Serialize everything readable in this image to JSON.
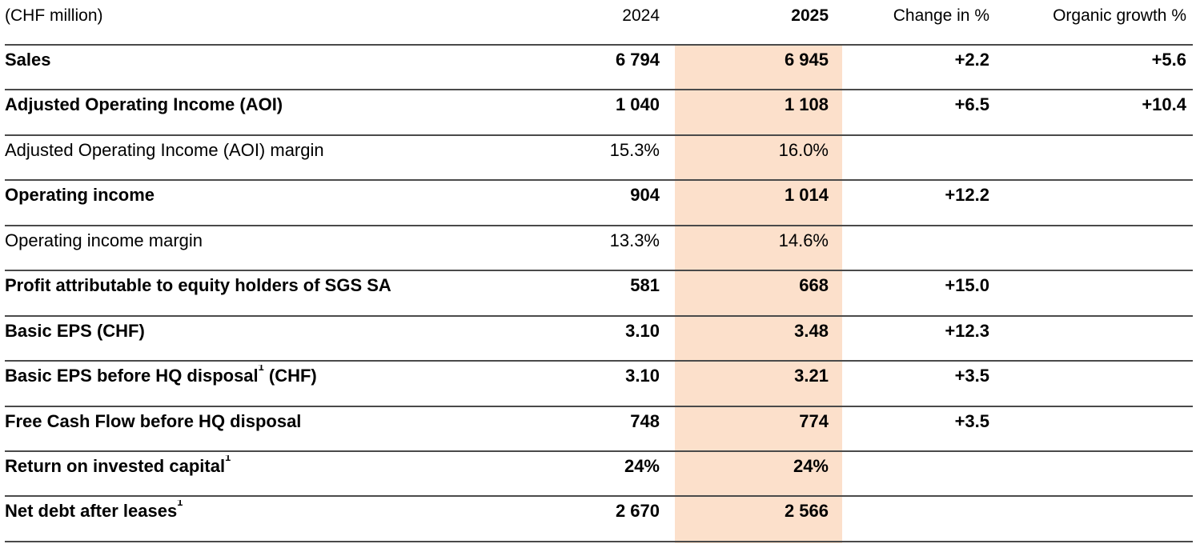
{
  "meta": {
    "highlight_color": "#FCE0CB",
    "line_color": "#4A4A4A",
    "text_color": "#000000",
    "highlighted_column": "2025"
  },
  "table": {
    "unit_label": "(CHF million)",
    "columns": [
      {
        "label": "2024"
      },
      {
        "label": "2025"
      },
      {
        "label": "Change in %"
      },
      {
        "label": "Organic growth %"
      }
    ],
    "rows": [
      {
        "label": "Sales",
        "sup": "",
        "label_suffix": "",
        "bold": true,
        "y2024": "6 794",
        "y2025": "6 945",
        "change": "+2.2",
        "organic": "+5.6"
      },
      {
        "label": "Adjusted Operating Income (AOI)",
        "sup": "",
        "label_suffix": "",
        "bold": true,
        "y2024": "1 040",
        "y2025": "1 108",
        "change": "+6.5",
        "organic": "+10.4"
      },
      {
        "label": "Adjusted Operating Income (AOI) margin",
        "sup": "",
        "label_suffix": "",
        "bold": false,
        "y2024": "15.3%",
        "y2025": "16.0%",
        "change": "",
        "organic": ""
      },
      {
        "label": "Operating income",
        "sup": "",
        "label_suffix": "",
        "bold": true,
        "y2024": "904",
        "y2025": "1 014",
        "change": "+12.2",
        "organic": ""
      },
      {
        "label": "Operating income margin",
        "sup": "",
        "label_suffix": "",
        "bold": false,
        "y2024": "13.3%",
        "y2025": "14.6%",
        "change": "",
        "organic": ""
      },
      {
        "label": "Profit attributable to equity holders of SGS SA",
        "sup": "",
        "label_suffix": "",
        "bold": true,
        "y2024": "581",
        "y2025": "668",
        "change": "+15.0",
        "organic": ""
      },
      {
        "label": "Basic EPS (CHF)",
        "sup": "",
        "label_suffix": "",
        "bold": true,
        "y2024": "3.10",
        "y2025": "3.48",
        "change": "+12.3",
        "organic": ""
      },
      {
        "label": "Basic EPS before HQ disposal",
        "sup": "1",
        "label_suffix": " (CHF)",
        "bold": true,
        "y2024": "3.10",
        "y2025": "3.21",
        "change": "+3.5",
        "organic": ""
      },
      {
        "label": "Free Cash Flow before HQ disposal",
        "sup": "",
        "label_suffix": "",
        "bold": true,
        "y2024": "748",
        "y2025": "774",
        "change": "+3.5",
        "organic": ""
      },
      {
        "label": "Return on invested capital",
        "sup": "1",
        "label_suffix": "",
        "bold": true,
        "y2024": "24%",
        "y2025": "24%",
        "change": "",
        "organic": ""
      },
      {
        "label": "Net debt after leases",
        "sup": "1",
        "label_suffix": "",
        "bold": true,
        "y2024": "2 670",
        "y2025": "2 566",
        "change": "",
        "organic": ""
      }
    ]
  }
}
